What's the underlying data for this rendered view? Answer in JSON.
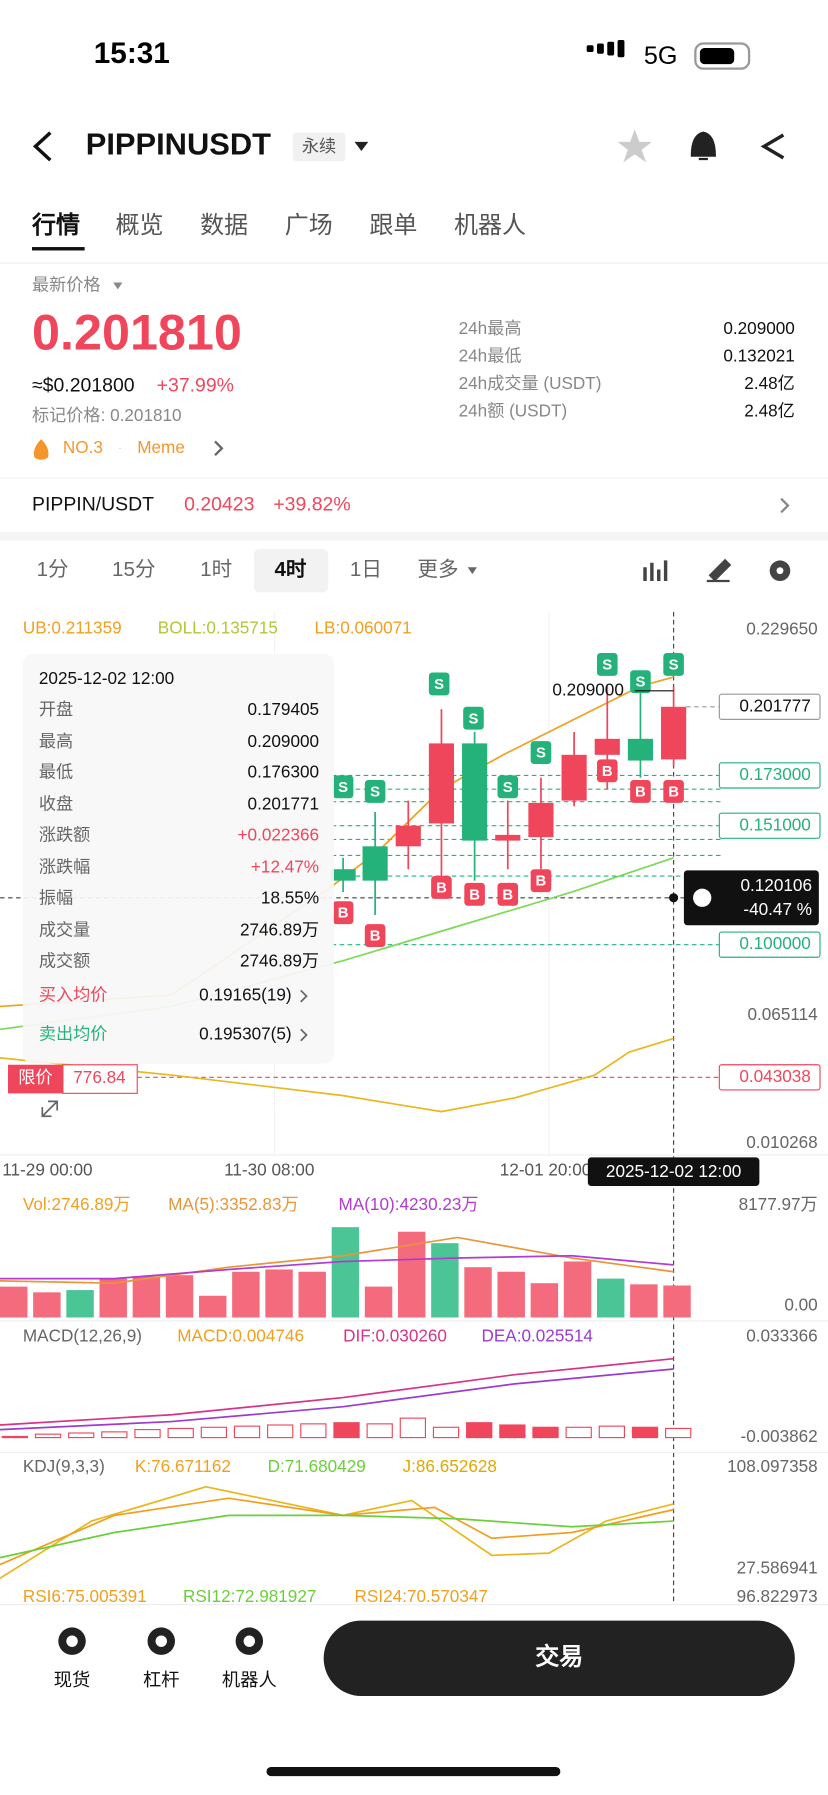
{
  "status": {
    "time": "15:31",
    "network": "5G"
  },
  "header": {
    "symbol": "PIPPINUSDT",
    "tag": "永续"
  },
  "tabs": [
    "行情",
    "概览",
    "数据",
    "广场",
    "跟单",
    "机器人"
  ],
  "price": {
    "label": "最新价格",
    "value": "0.201810",
    "usd": "≈$0.201800",
    "change": "+37.99%",
    "mark": "标记价格: 0.201810",
    "rank": "NO.3",
    "category": "Meme"
  },
  "stats": [
    {
      "label": "24h最高",
      "value": "0.209000"
    },
    {
      "label": "24h最低",
      "value": "0.132021"
    },
    {
      "label": "24h成交量 (USDT)",
      "value": "2.48亿"
    },
    {
      "label": "24h额 (USDT)",
      "value": "2.48亿"
    }
  ],
  "spot": {
    "pair": "PIPPIN/USDT",
    "price": "0.20423",
    "change": "+39.82%"
  },
  "intervals": [
    "1分",
    "15分",
    "1时",
    "4时",
    "1日",
    "更多"
  ],
  "boll": [
    "UB:0.211359",
    "BOLL:0.135715",
    "LB:0.060071"
  ],
  "price_axis": {
    "top": "0.229650",
    "last": "0.201777",
    "level1": "0.173000",
    "level2": "0.151000",
    "cross": "0.120106",
    "cross_pct": "-40.47 %",
    "level3": "0.100000",
    "mid": "0.065114",
    "limit": "0.043038",
    "bottom": "0.010268"
  },
  "high_label": "0.209000",
  "tooltip": {
    "date": "2025-12-02 12:00",
    "rows": [
      [
        "开盘",
        "0.179405"
      ],
      [
        "最高",
        "0.209000"
      ],
      [
        "最低",
        "0.176300"
      ],
      [
        "收盘",
        "0.201771"
      ],
      [
        "涨跌额",
        "+0.022366"
      ],
      [
        "涨跌幅",
        "+12.47%"
      ],
      [
        "振幅",
        "18.55%"
      ],
      [
        "成交量",
        "2746.89万"
      ],
      [
        "成交额",
        "2746.89万"
      ],
      [
        "买入均价",
        "0.19165(19)"
      ],
      [
        "卖出均价",
        "0.195307(5)"
      ]
    ]
  },
  "limit": {
    "label": "限价",
    "value": "776.84"
  },
  "markers": {
    "buy": "B",
    "sell": "S"
  },
  "x_axis": [
    "11-29 00:00",
    "11-30 08:00",
    "12-01 20:00"
  ],
  "crosshair_time": "2025-12-02 12:00",
  "volume": {
    "labels": [
      "Vol:2746.89万",
      "MA(5):3352.83万",
      "MA(10):4230.23万"
    ],
    "axis": [
      "8177.97万",
      "0.00"
    ]
  },
  "macd": {
    "labels": [
      "MACD(12,26,9)",
      "MACD:0.004746",
      "DIF:0.030260",
      "DEA:0.025514"
    ],
    "axis": [
      "0.033366",
      "-0.003862"
    ]
  },
  "kdj": {
    "labels": [
      "KDJ(9,3,3)",
      "K:76.671162",
      "D:71.680429",
      "J:86.652628"
    ],
    "axis": [
      "108.097358",
      "27.586941"
    ]
  },
  "rsi": {
    "labels": [
      "RSI6:75.005391",
      "RSI12:72.981927",
      "RSI24:70.570347"
    ],
    "axis": "96.822973"
  },
  "bottom_nav": [
    "现货",
    "杠杆",
    "机器人"
  ],
  "trade_button": "交易"
}
